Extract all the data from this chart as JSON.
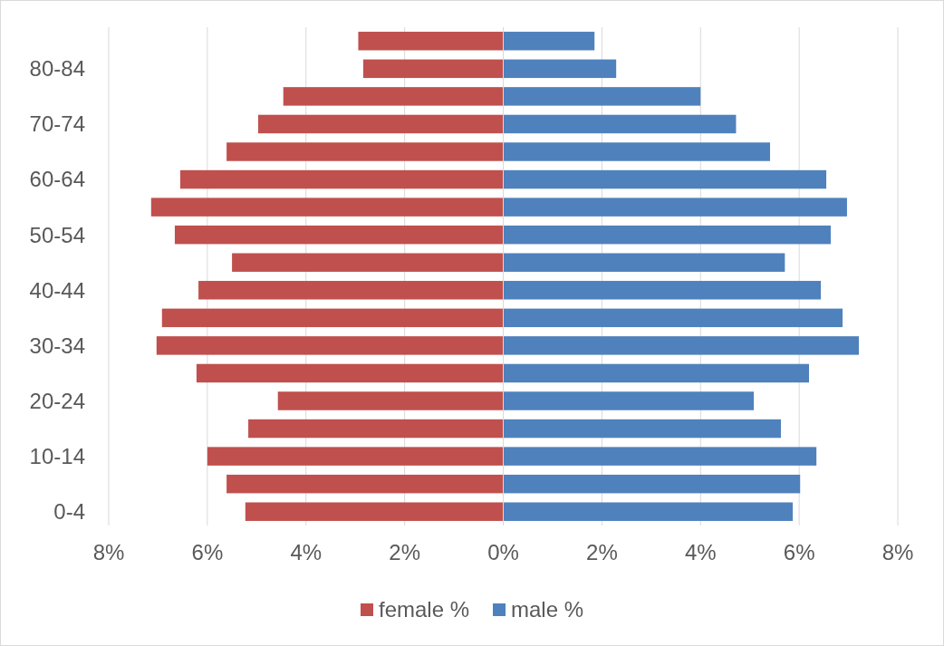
{
  "chart_data": {
    "type": "bar",
    "orientation": "horizontal",
    "stacked": true,
    "categories": [
      null,
      "80-84",
      null,
      "70-74",
      null,
      "60-64",
      null,
      "50-54",
      null,
      "40-44",
      null,
      "30-34",
      null,
      "20-24",
      null,
      "10-14",
      null,
      "0-4"
    ],
    "series": [
      {
        "name": "female %",
        "color": "#c0504d",
        "values": [
          -2.94,
          -2.84,
          -4.46,
          -4.97,
          -5.61,
          -6.55,
          -7.14,
          -6.66,
          -5.5,
          -6.18,
          -6.92,
          -7.03,
          -6.22,
          -4.57,
          -5.17,
          -6.0,
          -5.61,
          -5.23
        ]
      },
      {
        "name": "male %",
        "color": "#4f81bd",
        "values": [
          1.85,
          2.29,
          4.0,
          4.72,
          5.41,
          6.55,
          6.97,
          6.64,
          5.71,
          6.44,
          6.88,
          7.21,
          6.2,
          5.08,
          5.63,
          6.35,
          6.02,
          5.87
        ]
      }
    ],
    "xlim": [
      -8,
      8
    ],
    "xticks": [
      {
        "value": -8,
        "label": "8%"
      },
      {
        "value": -6,
        "label": "6%"
      },
      {
        "value": -4,
        "label": "4%"
      },
      {
        "value": -2,
        "label": "2%"
      },
      {
        "value": 0,
        "label": "0%"
      },
      {
        "value": 2,
        "label": "2%"
      },
      {
        "value": 4,
        "label": "4%"
      },
      {
        "value": 6,
        "label": "6%"
      },
      {
        "value": 8,
        "label": "8%"
      }
    ],
    "grid": "x",
    "legend": "bottom"
  }
}
